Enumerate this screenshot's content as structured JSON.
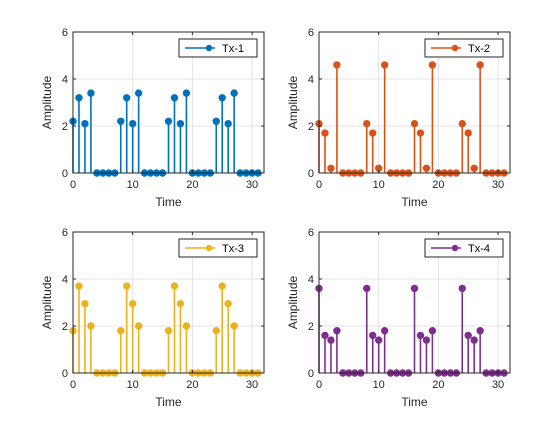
{
  "chart_data": [
    {
      "type": "stem",
      "color": "#0072BD",
      "xlabel": "Time",
      "ylabel": "Amplitude",
      "xlim": [
        0,
        32
      ],
      "ylim": [
        0,
        6
      ],
      "xticks": [
        0,
        10,
        20,
        30
      ],
      "yticks": [
        0,
        2,
        4,
        6
      ],
      "grid": true,
      "legend_position": "top-right",
      "series": [
        {
          "name": "Tx-1",
          "x": [
            0,
            1,
            2,
            3,
            4,
            5,
            6,
            7,
            8,
            9,
            10,
            11,
            12,
            13,
            14,
            15,
            16,
            17,
            18,
            19,
            20,
            21,
            22,
            23,
            24,
            25,
            26,
            27,
            28,
            29,
            30,
            31
          ],
          "values": [
            2.2,
            3.2,
            2.1,
            3.4,
            0,
            0,
            0,
            0,
            2.2,
            3.2,
            2.1,
            3.4,
            0,
            0,
            0,
            0,
            2.2,
            3.2,
            2.1,
            3.4,
            0,
            0,
            0,
            0,
            2.2,
            3.2,
            2.1,
            3.4,
            0,
            0,
            0,
            0
          ]
        }
      ]
    },
    {
      "type": "stem",
      "color": "#D95319",
      "xlabel": "Time",
      "ylabel": "Amplitude",
      "xlim": [
        0,
        32
      ],
      "ylim": [
        0,
        6
      ],
      "xticks": [
        0,
        10,
        20,
        30
      ],
      "yticks": [
        0,
        2,
        4,
        6
      ],
      "grid": true,
      "legend_position": "top-right",
      "series": [
        {
          "name": "Tx-2",
          "x": [
            0,
            1,
            2,
            3,
            4,
            5,
            6,
            7,
            8,
            9,
            10,
            11,
            12,
            13,
            14,
            15,
            16,
            17,
            18,
            19,
            20,
            21,
            22,
            23,
            24,
            25,
            26,
            27,
            28,
            29,
            30,
            31
          ],
          "values": [
            2.1,
            1.7,
            0.2,
            4.6,
            0,
            0,
            0,
            0,
            2.1,
            1.7,
            0.2,
            4.6,
            0,
            0,
            0,
            0,
            2.1,
            1.7,
            0.2,
            4.6,
            0,
            0,
            0,
            0,
            2.1,
            1.7,
            0.2,
            4.6,
            0,
            0,
            0,
            0
          ]
        }
      ]
    },
    {
      "type": "stem",
      "color": "#EDB120",
      "xlabel": "Time",
      "ylabel": "Amplitude",
      "xlim": [
        0,
        32
      ],
      "ylim": [
        0,
        6
      ],
      "xticks": [
        0,
        10,
        20,
        30
      ],
      "yticks": [
        0,
        2,
        4,
        6
      ],
      "grid": true,
      "legend_position": "top-right",
      "series": [
        {
          "name": "Tx-3",
          "x": [
            0,
            1,
            2,
            3,
            4,
            5,
            6,
            7,
            8,
            9,
            10,
            11,
            12,
            13,
            14,
            15,
            16,
            17,
            18,
            19,
            20,
            21,
            22,
            23,
            24,
            25,
            26,
            27,
            28,
            29,
            30,
            31
          ],
          "values": [
            1.8,
            3.7,
            2.95,
            2.0,
            0,
            0,
            0,
            0,
            1.8,
            3.7,
            2.95,
            2.0,
            0,
            0,
            0,
            0,
            1.8,
            3.7,
            2.95,
            2.0,
            0,
            0,
            0,
            0,
            1.8,
            3.7,
            2.95,
            2.0,
            0,
            0,
            0,
            0
          ]
        }
      ]
    },
    {
      "type": "stem",
      "color": "#7E2F8E",
      "xlabel": "Time",
      "ylabel": "Amplitude",
      "xlim": [
        0,
        32
      ],
      "ylim": [
        0,
        6
      ],
      "xticks": [
        0,
        10,
        20,
        30
      ],
      "yticks": [
        0,
        2,
        4,
        6
      ],
      "grid": true,
      "legend_position": "top-right",
      "series": [
        {
          "name": "Tx-4",
          "x": [
            0,
            1,
            2,
            3,
            4,
            5,
            6,
            7,
            8,
            9,
            10,
            11,
            12,
            13,
            14,
            15,
            16,
            17,
            18,
            19,
            20,
            21,
            22,
            23,
            24,
            25,
            26,
            27,
            28,
            29,
            30,
            31
          ],
          "values": [
            3.6,
            1.6,
            1.4,
            1.8,
            0,
            0,
            0,
            0,
            3.6,
            1.6,
            1.4,
            1.8,
            0,
            0,
            0,
            0,
            3.6,
            1.6,
            1.4,
            1.8,
            0,
            0,
            0,
            0,
            3.6,
            1.6,
            1.4,
            1.8,
            0,
            0,
            0,
            0
          ]
        }
      ]
    }
  ]
}
